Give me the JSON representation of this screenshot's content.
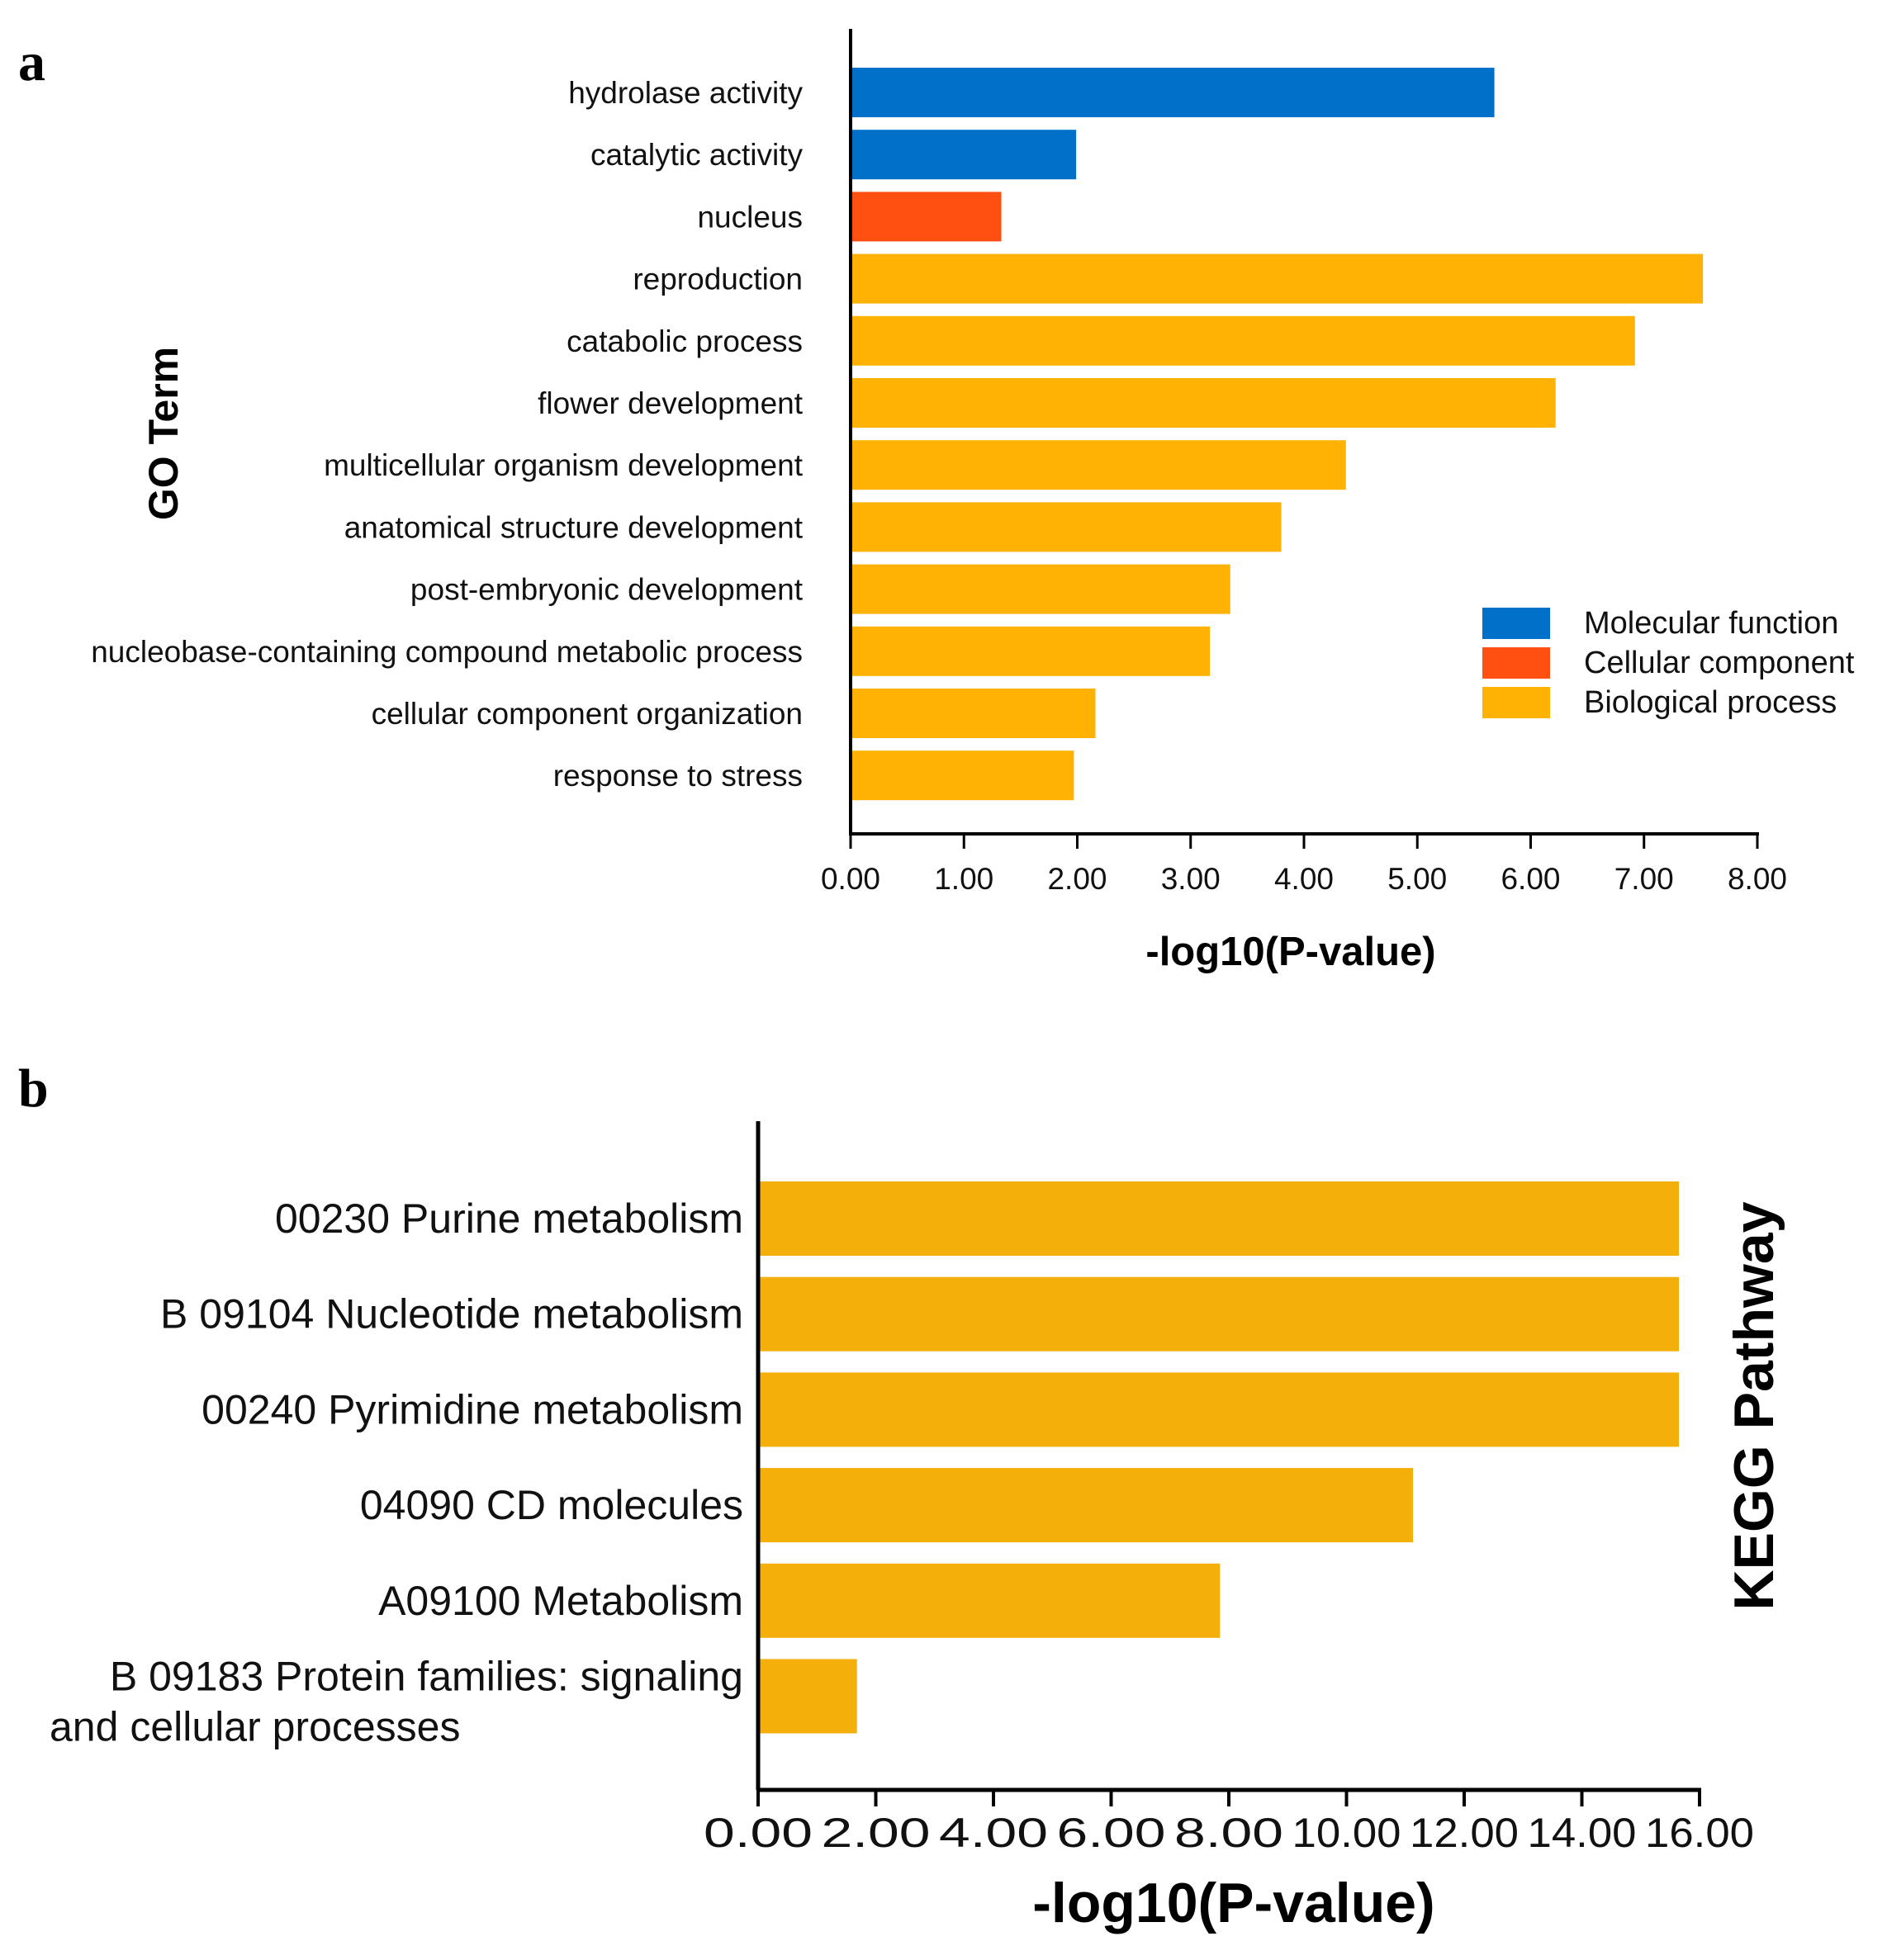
{
  "chart_data": [
    {
      "panel": "a",
      "type": "bar",
      "orientation": "horizontal",
      "ylabel": "GO Term",
      "xlabel": "-log10(P-value)",
      "xlim": [
        0,
        8
      ],
      "xticks": [
        "0.00",
        "1.00",
        "2.00",
        "3.00",
        "4.00",
        "5.00",
        "6.00",
        "7.00",
        "8.00"
      ],
      "categories": [
        "hydrolase activity",
        "catalytic activity",
        "nucleus",
        "reproduction",
        "catabolic process",
        "flower development",
        "multicellular organism development",
        "anatomical structure development",
        "post-embryonic development",
        "nucleobase-containing compound metabolic process",
        "cellular component organization",
        "response to stress"
      ],
      "values": [
        5.68,
        1.99,
        1.33,
        7.52,
        6.92,
        6.22,
        4.37,
        3.8,
        3.35,
        3.17,
        2.16,
        1.97
      ],
      "groups": [
        "Molecular function",
        "Molecular function",
        "Cellular component",
        "Biological process",
        "Biological process",
        "Biological process",
        "Biological process",
        "Biological process",
        "Biological process",
        "Biological process",
        "Biological process",
        "Biological process"
      ],
      "legend": [
        {
          "label": "Molecular function",
          "color": "#0070C8"
        },
        {
          "label": "Cellular component",
          "color": "#FF5012"
        },
        {
          "label": "Biological process",
          "color": "#FFB104"
        }
      ],
      "legend_position": "right"
    },
    {
      "panel": "b",
      "type": "bar",
      "orientation": "horizontal",
      "ylabel": "KEGG Pathway",
      "xlabel": "-log10(P-value)",
      "xlim": [
        0,
        16
      ],
      "xticks": [
        "0.00",
        "2.00",
        "4.00",
        "6.00",
        "8.00",
        "10.00",
        "12.00",
        "14.00",
        "16.00"
      ],
      "categories": [
        [
          "00230 Purine metabolism"
        ],
        [
          "B  09104 Nucleotide metabolism"
        ],
        [
          "00240 Pyrimidine metabolism"
        ],
        [
          "04090 CD molecules"
        ],
        [
          "A09100 Metabolism"
        ],
        [
          "B  09183 Protein families: signaling",
          "and cellular processes"
        ]
      ],
      "values": [
        15.65,
        15.65,
        15.65,
        11.13,
        7.85,
        1.68
      ],
      "color": "#F4AF0A"
    }
  ]
}
